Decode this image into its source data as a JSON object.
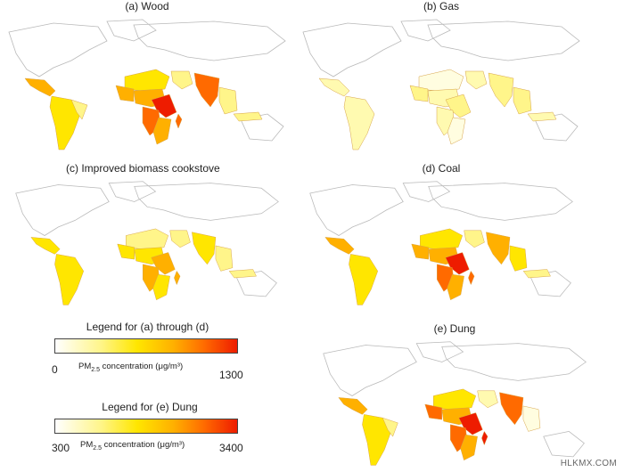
{
  "panels": [
    {
      "title": "(a) Wood"
    },
    {
      "title": "(b) Gas"
    },
    {
      "title": "(c) Improved biomass cookstove"
    },
    {
      "title": "(d) Coal"
    },
    {
      "title": "(e) Dung"
    }
  ],
  "legends": [
    {
      "title": "Legend for (a) through (d)",
      "min": "0",
      "max": "1300",
      "caption_pre": "PM",
      "caption_sub": "2.5",
      "caption_post": " concentration (μg/m³)"
    },
    {
      "title": "Legend for (e) Dung",
      "min": "300",
      "max": "3400",
      "caption_pre": "PM",
      "caption_sub": "2.5",
      "caption_post": " concentration (μg/m³)"
    }
  ],
  "colors": {
    "scale": [
      "#fffde0",
      "#fff58a",
      "#ffe600",
      "#ffb000",
      "#ff6a00",
      "#ee1c00"
    ],
    "outline": "#b9b9b9"
  },
  "watermark": "HLKMX.COM"
}
